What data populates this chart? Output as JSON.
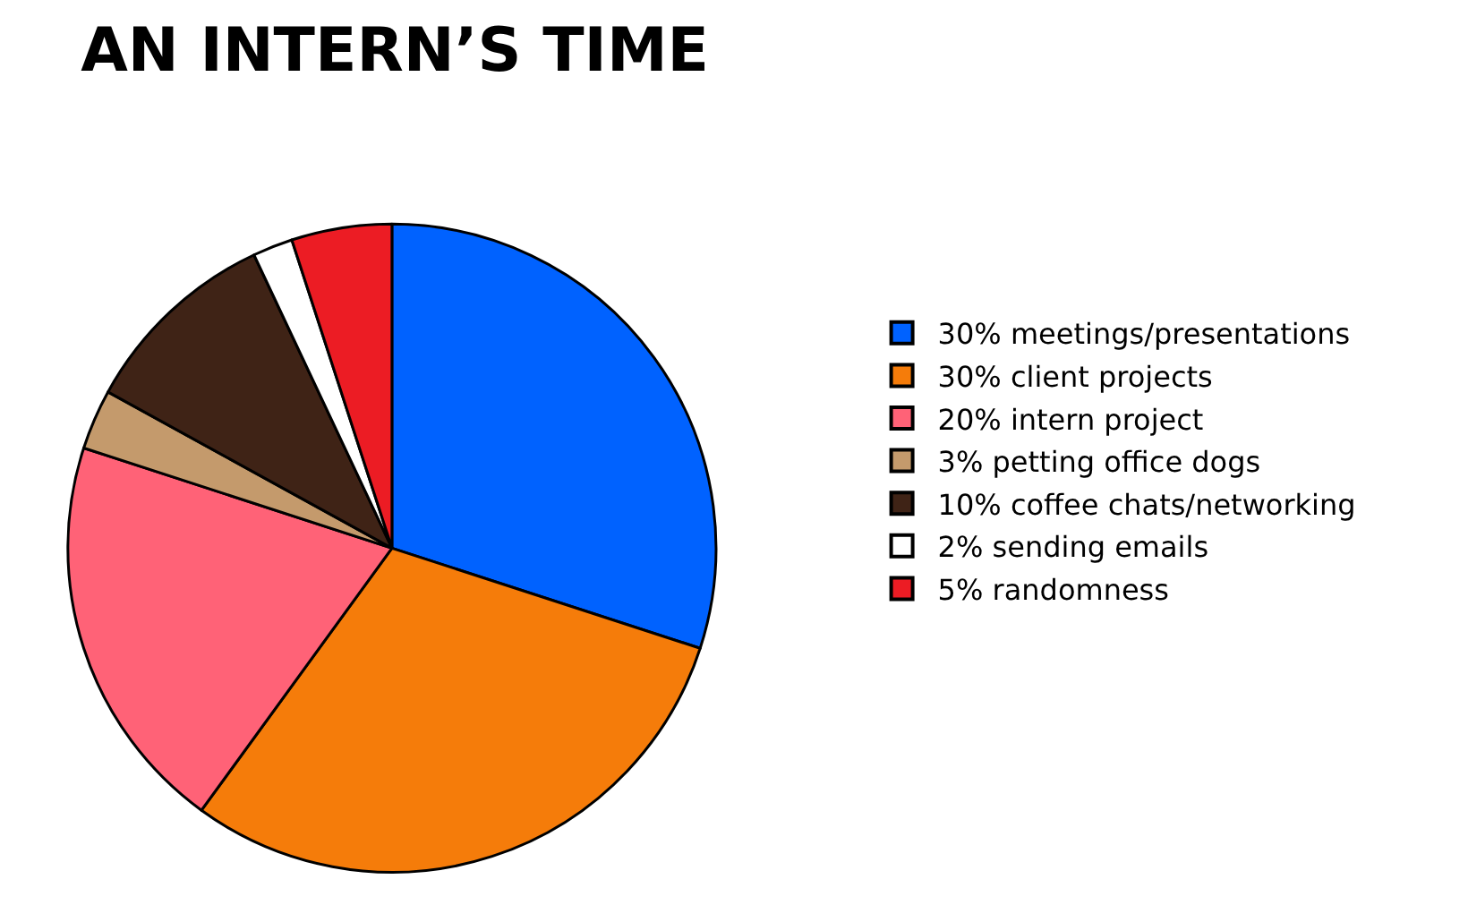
{
  "chart_data": {
    "type": "pie",
    "title": "AN INTERN’S TIME",
    "categories": [
      "30% meetings/presentations",
      "30% client projects",
      "20% intern project",
      "3% petting office dogs",
      "10% coffee chats/networking",
      "2% sending emails",
      "5% randomness"
    ],
    "values": [
      30,
      30,
      20,
      3,
      10,
      2,
      5
    ],
    "colors": [
      "#0062ff",
      "#f57c0a",
      "#ff6277",
      "#c49a6c",
      "#3f2316",
      "#ffffff",
      "#ec1c24"
    ],
    "legend": "right"
  }
}
